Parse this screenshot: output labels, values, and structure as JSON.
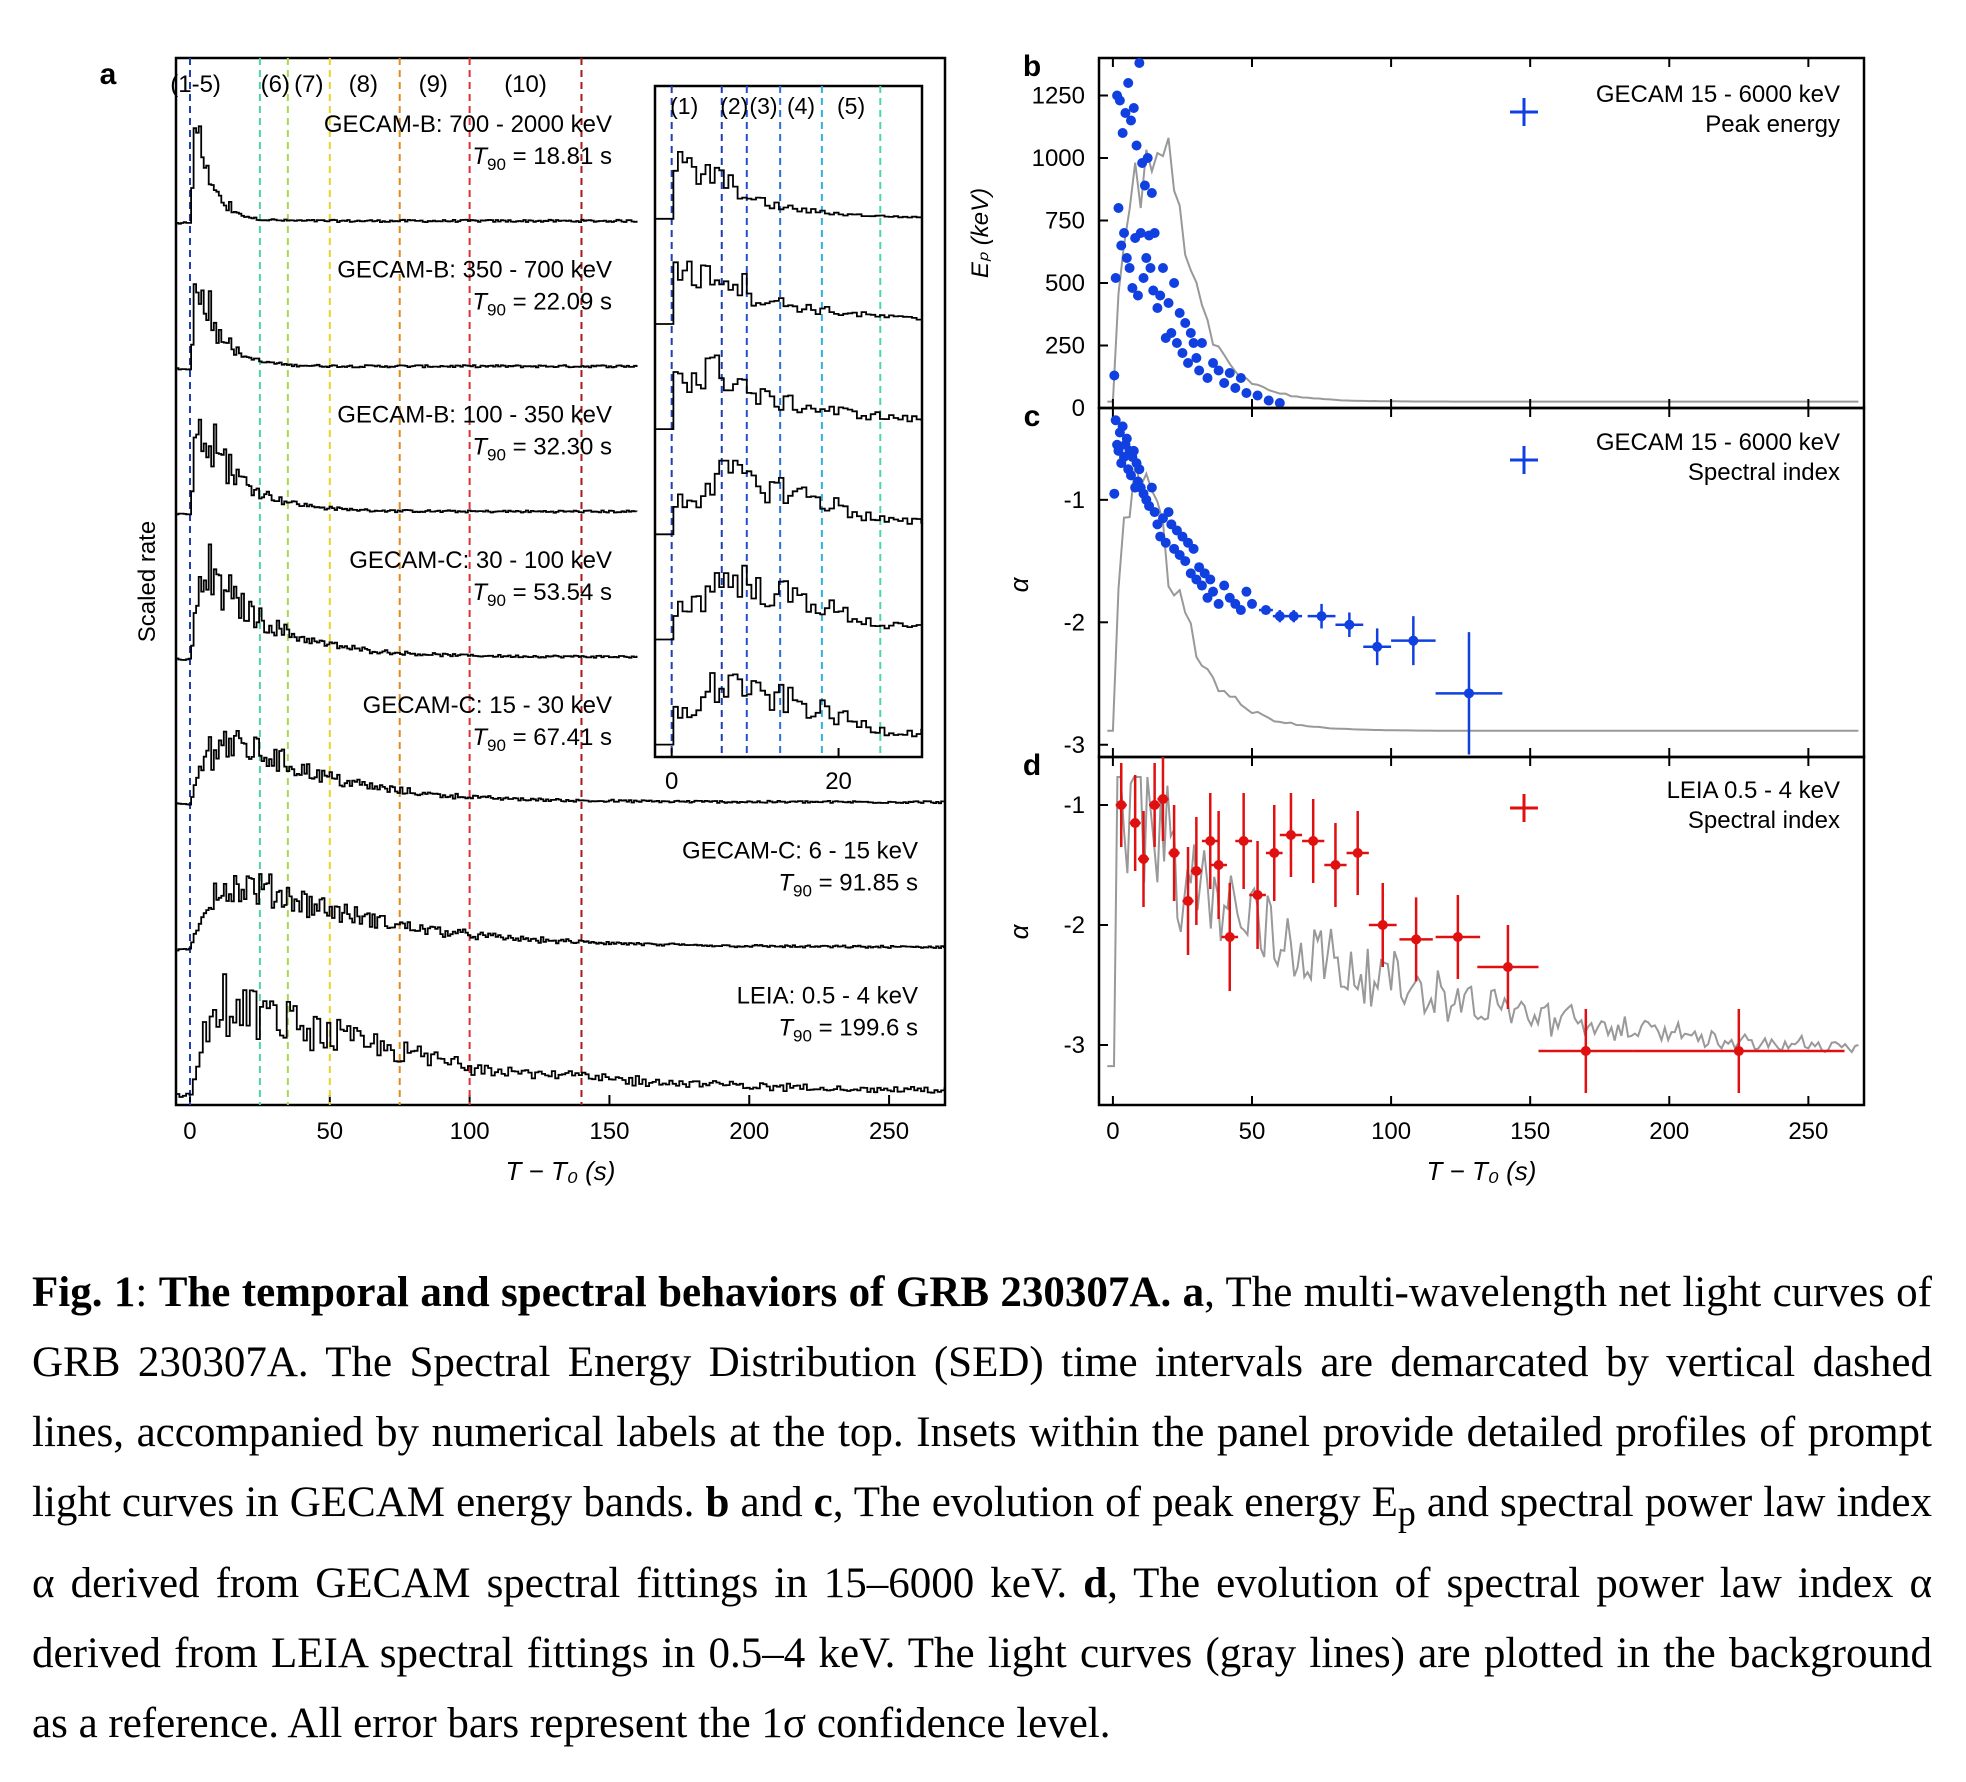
{
  "figure": {
    "panel_labels": {
      "a": "a",
      "b": "b",
      "c": "c",
      "d": "d"
    },
    "xlabel": "T − T₀ (s)",
    "ylabel_a": "Scaled rate",
    "ylabel_b": "Eₚ (keV)",
    "ylabel_c": "α",
    "ylabel_d": "α"
  },
  "chart_data": [
    {
      "panel": "a",
      "type": "line",
      "xlabel": "T − T₀ (s)",
      "ylabel": "Scaled rate",
      "xlim": [
        -5,
        270
      ],
      "xticks": [
        "0",
        "50",
        "100",
        "150",
        "200",
        "250"
      ],
      "interval_labels": [
        "(1-5)",
        "(6)",
        "(7)",
        "(8)",
        "(9)",
        "(10)"
      ],
      "interval_boundaries": [
        {
          "t": 0,
          "color": "#1f3fb0"
        },
        {
          "t": 25,
          "color": "#4fd6a0"
        },
        {
          "t": 35,
          "color": "#a8d850"
        },
        {
          "t": 50,
          "color": "#e8d22a"
        },
        {
          "t": 75,
          "color": "#e08a20"
        },
        {
          "t": 100,
          "color": "#e03030"
        },
        {
          "t": 140,
          "color": "#a81a1a"
        }
      ],
      "series": [
        {
          "name": "GECAM-B: 700 - 2000 keV",
          "t90": "18.81 s",
          "decay": 6,
          "rise": 1
        },
        {
          "name": "GECAM-B: 350 - 700 keV",
          "t90": "22.09 s",
          "decay": 8,
          "rise": 1.5
        },
        {
          "name": "GECAM-B: 100 - 350 keV",
          "t90": "32.30 s",
          "decay": 14,
          "rise": 2
        },
        {
          "name": "GECAM-C: 30 - 100 keV",
          "t90": "53.54 s",
          "decay": 22,
          "rise": 4
        },
        {
          "name": "GECAM-C: 15 - 30 keV",
          "t90": "67.41 s",
          "decay": 32,
          "rise": 10
        },
        {
          "name": "GECAM-C: 6 - 15 keV",
          "t90": "91.85 s",
          "decay": 45,
          "rise": 12
        },
        {
          "name": "LEIA: 0.5 - 4 keV",
          "t90": "199.6 s",
          "decay": 70,
          "rise": 8
        }
      ],
      "t90_prefix": "T",
      "t90_sub": "90",
      "inset": {
        "xlim": [
          -2,
          30
        ],
        "xticks": [
          "0",
          "20"
        ],
        "interval_labels": [
          "(1)",
          "(2)",
          "(3)",
          "(4)",
          "(5)"
        ],
        "boundaries": [
          {
            "t": 0,
            "color": "#1f3fb0"
          },
          {
            "t": 6,
            "color": "#1f3fb0"
          },
          {
            "t": 9,
            "color": "#2050d0"
          },
          {
            "t": 13,
            "color": "#2a70d8"
          },
          {
            "t": 18,
            "color": "#30b0e0"
          },
          {
            "t": 25,
            "color": "#4fd6a0"
          }
        ]
      }
    },
    {
      "panel": "b",
      "type": "scatter",
      "title": "",
      "legend": [
        "GECAM 15 - 6000 keV",
        "Peak energy"
      ],
      "ylabel": "Eₚ (keV)",
      "xlim": [
        -5,
        270
      ],
      "ylim": [
        0,
        1400
      ],
      "yticks": [
        0,
        250,
        500,
        750,
        1000,
        1250
      ],
      "color": "#1040e0",
      "x": [
        0.5,
        1,
        1.5,
        2,
        2.5,
        3,
        3.5,
        4,
        4.5,
        5,
        5.5,
        6,
        6.5,
        7,
        7.5,
        8,
        8.5,
        9,
        9.5,
        10,
        10.5,
        11,
        11.5,
        12,
        12.5,
        13,
        13.5,
        14,
        14.5,
        15,
        16,
        17,
        18,
        19,
        20,
        21,
        22,
        23,
        24,
        25,
        26,
        27,
        28,
        29,
        30,
        31,
        32,
        34,
        36,
        38,
        40,
        42,
        44,
        46,
        48,
        52,
        56,
        60
      ],
      "y": [
        130,
        520,
        1250,
        800,
        1230,
        650,
        1100,
        700,
        1180,
        600,
        1300,
        560,
        1150,
        480,
        1200,
        680,
        1050,
        450,
        1380,
        700,
        980,
        520,
        890,
        600,
        1000,
        690,
        560,
        860,
        470,
        700,
        400,
        450,
        560,
        280,
        420,
        300,
        500,
        260,
        380,
        220,
        340,
        180,
        300,
        260,
        200,
        150,
        260,
        120,
        180,
        150,
        100,
        140,
        80,
        120,
        60,
        50,
        30,
        20
      ],
      "background_curve": "gray light curve reference"
    },
    {
      "panel": "c",
      "type": "scatter",
      "legend": [
        "GECAM 15 - 6000 keV",
        "Spectral index"
      ],
      "ylabel": "α",
      "xlim": [
        -5,
        270
      ],
      "ylim": [
        -3.1,
        -0.25
      ],
      "yticks": [
        -1,
        -2,
        -3
      ],
      "color": "#1040e0",
      "x": [
        0.5,
        1,
        1.5,
        2,
        2.5,
        3,
        3.5,
        4,
        4.5,
        5,
        5.5,
        6,
        6.5,
        7,
        7.5,
        8,
        8.5,
        9,
        9.5,
        10,
        11,
        12,
        13,
        14,
        15,
        16,
        17,
        18,
        19,
        20,
        21,
        22,
        23,
        24,
        25,
        26,
        27,
        28,
        29,
        30,
        31,
        32,
        33,
        34,
        35,
        36,
        38,
        40,
        42,
        44,
        46,
        48,
        50,
        55,
        60,
        65,
        75,
        85,
        95,
        108,
        128
      ],
      "y": [
        -0.95,
        -0.35,
        -0.55,
        -0.6,
        -0.45,
        -0.7,
        -0.4,
        -0.65,
        -0.55,
        -0.5,
        -0.75,
        -0.6,
        -0.8,
        -0.65,
        -0.6,
        -0.9,
        -0.7,
        -0.85,
        -0.75,
        -0.9,
        -0.95,
        -1.0,
        -1.05,
        -0.9,
        -1.1,
        -1.2,
        -1.3,
        -1.15,
        -1.35,
        -1.1,
        -1.2,
        -1.4,
        -1.25,
        -1.45,
        -1.3,
        -1.5,
        -1.35,
        -1.6,
        -1.4,
        -1.65,
        -1.55,
        -1.7,
        -1.6,
        -1.8,
        -1.65,
        -1.75,
        -1.85,
        -1.7,
        -1.8,
        -1.85,
        -1.9,
        -1.75,
        -1.85,
        -1.9,
        -1.95,
        -1.95,
        -1.95,
        -2.02,
        -2.2,
        -2.15,
        -2.58
      ],
      "xerr": [
        0,
        0,
        0,
        0,
        0,
        0,
        0,
        0,
        0,
        0,
        0,
        0,
        0,
        0,
        0,
        0,
        0,
        0,
        0,
        0,
        0,
        0,
        0,
        0,
        0,
        0,
        0,
        0,
        0,
        0,
        0,
        0,
        0,
        0,
        0,
        0,
        0,
        0,
        0,
        0,
        0,
        0,
        0,
        0,
        0,
        0,
        0,
        0,
        0,
        0,
        0,
        0,
        0,
        2.5,
        2.5,
        3,
        5,
        5,
        5,
        8,
        12
      ],
      "yerr": [
        0,
        0,
        0,
        0,
        0,
        0,
        0,
        0,
        0,
        0,
        0,
        0,
        0,
        0,
        0,
        0,
        0,
        0,
        0,
        0,
        0,
        0,
        0,
        0,
        0,
        0,
        0,
        0,
        0,
        0,
        0,
        0,
        0,
        0,
        0,
        0,
        0,
        0,
        0,
        0,
        0,
        0,
        0,
        0,
        0,
        0,
        0,
        0,
        0,
        0,
        0,
        0,
        0,
        0.03,
        0.05,
        0.05,
        0.1,
        0.1,
        0.15,
        0.2,
        0.5
      ]
    },
    {
      "panel": "d",
      "type": "scatter",
      "legend": [
        "LEIA 0.5 - 4 keV",
        "Spectral index"
      ],
      "ylabel": "α",
      "xlim": [
        -5,
        270
      ],
      "ylim": [
        -3.5,
        -0.6
      ],
      "yticks": [
        -1,
        -2,
        -3
      ],
      "color": "#e01010",
      "x": [
        3,
        8,
        11,
        15,
        18,
        22,
        27,
        30,
        35,
        38,
        42,
        47,
        52,
        58,
        64,
        72,
        80,
        88,
        97,
        109,
        124,
        142,
        170,
        225
      ],
      "y": [
        -1.0,
        -1.15,
        -1.45,
        -1.0,
        -0.95,
        -1.4,
        -1.8,
        -1.55,
        -1.3,
        -1.5,
        -2.1,
        -1.3,
        -1.75,
        -1.4,
        -1.25,
        -1.3,
        -1.5,
        -1.4,
        -2.0,
        -2.12,
        -2.1,
        -2.35,
        -3.05,
        -3.05
      ],
      "xerr": [
        2,
        2,
        2,
        2,
        2,
        2,
        2,
        2,
        3,
        3,
        3,
        3,
        3,
        3,
        4,
        4,
        4,
        4,
        5,
        6,
        8,
        11,
        17,
        38
      ],
      "yerr": [
        0.35,
        0.4,
        0.4,
        0.35,
        0.35,
        0.4,
        0.45,
        0.45,
        0.4,
        0.45,
        0.45,
        0.4,
        0.45,
        0.4,
        0.35,
        0.35,
        0.35,
        0.35,
        0.35,
        0.35,
        0.35,
        0.35,
        0.35,
        0.35
      ]
    }
  ],
  "caption": {
    "fig": "Fig. 1",
    "title": "The temporal and spectral behaviors of GRB 230307A.",
    "a_label": "a",
    "a_text": ", The multi-wavelength net light curves of GRB 230307A. The Spectral Energy Distribution (SED) time intervals are demarcated by vertical dashed lines, accompanied by numerical labels at the top. Insets within the panel provide detailed profiles of prompt light curves in GECAM energy bands.",
    "bc_label_b": "b",
    "bc_and": " and ",
    "bc_label_c": "c",
    "bc_text": ", The evolution of peak energy E",
    "bc_sub": "p",
    "bc_text2": " and spectral power law index α derived from GECAM spectral fittings in 15–6000 keV.",
    "d_label": "d",
    "d_text": ", The evolution of spectral power law index α derived from LEIA spectral fittings in 0.5–4 keV. The light curves (gray lines) are plotted in the background as a reference. All error bars represent the 1σ confidence level."
  }
}
